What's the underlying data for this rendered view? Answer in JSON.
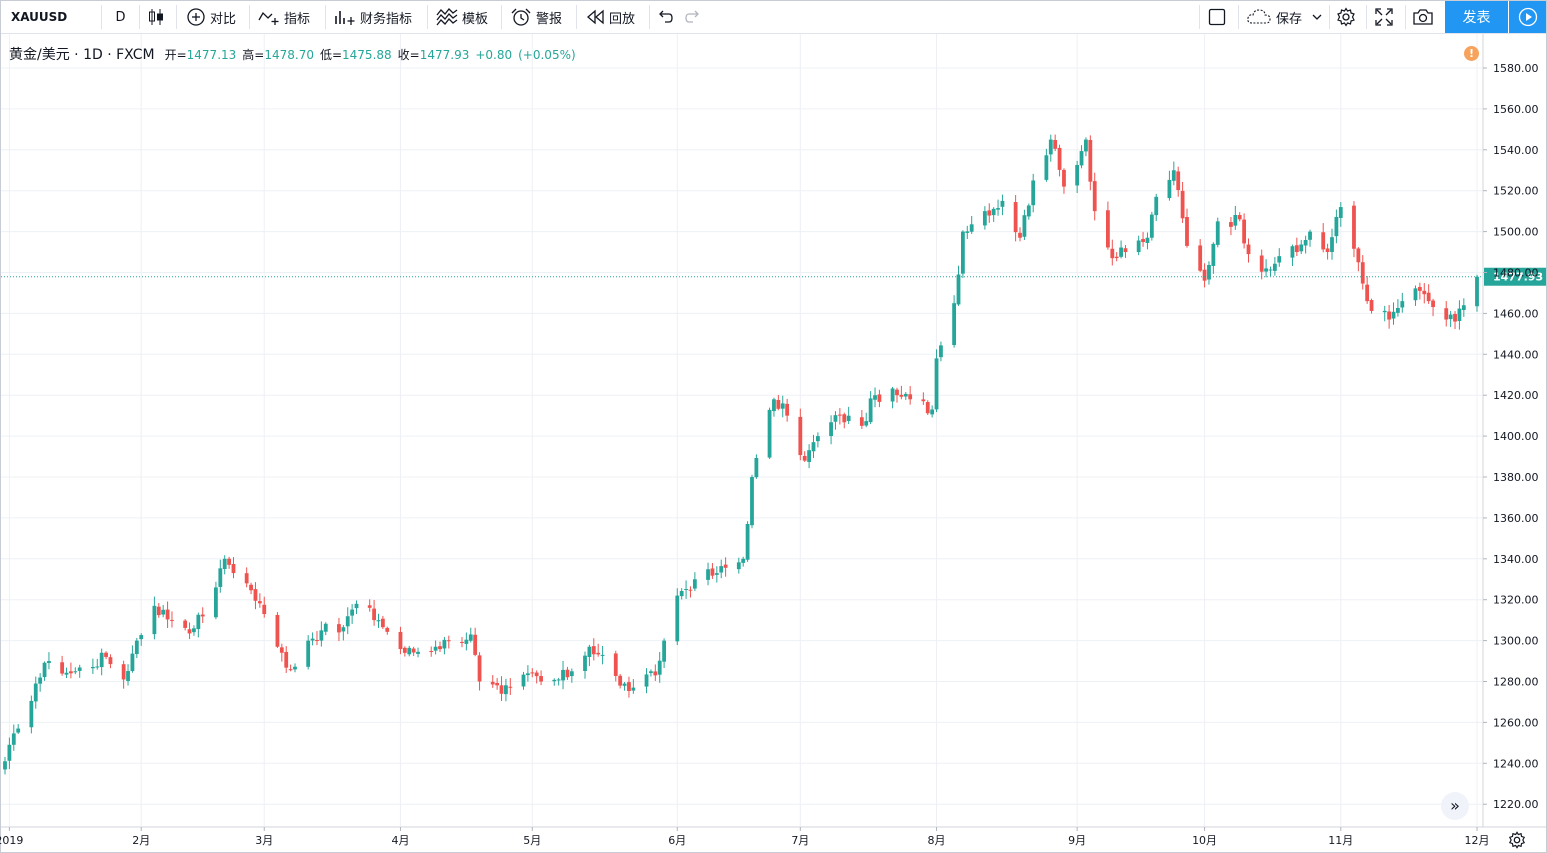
{
  "toolbar": {
    "symbol": "XAUUSD",
    "interval": "D",
    "compare_label": "对比",
    "indicators_label": "指标",
    "financials_label": "财务指标",
    "templates_label": "模板",
    "alert_label": "警报",
    "replay_label": "回放",
    "save_label": "保存",
    "publish_label": "发表"
  },
  "legend": {
    "title": "黄金/美元 · 1D · FXCM",
    "open_label": "开=",
    "open": "1477.13",
    "high_label": "高=",
    "high": "1478.70",
    "low_label": "低=",
    "low": "1475.88",
    "close_label": "收=",
    "close": "1477.93",
    "change": "+0.80",
    "change_pct": "(+0.05%)",
    "alert_mark": "!"
  },
  "colors": {
    "up": "#26a69a",
    "down": "#ef5350",
    "accent": "#2196f3",
    "grid": "#edf0f5",
    "price_line": "#26a69a"
  },
  "icons": {
    "scroll_right": "»"
  },
  "chart_data": {
    "type": "candlestick",
    "title": "黄金/美元 · 1D · FXCM",
    "x_tick_labels": [
      "2019",
      "2月",
      "3月",
      "4月",
      "5月",
      "6月",
      "7月",
      "8月",
      "9月",
      "10月",
      "11月",
      "12月"
    ],
    "y_ticks": [
      1220,
      1240,
      1260,
      1280,
      1300,
      1320,
      1340,
      1360,
      1380,
      1400,
      1420,
      1440,
      1460,
      1480,
      1500,
      1520,
      1540,
      1560,
      1580
    ],
    "y_tick_labels": [
      "1220.00",
      "1240.00",
      "1260.00",
      "1280.00",
      "1300.00",
      "1320.00",
      "1340.00",
      "1360.00",
      "1380.00",
      "1400.00",
      "1420.00",
      "1440.00",
      "1460.00",
      "1480.00",
      "1500.00",
      "1520.00",
      "1540.00",
      "1560.00",
      "1580.00"
    ],
    "ylim": [
      1212.9,
      1585.4
    ],
    "grid": true,
    "last_price": 1477.93,
    "last_price_label": "1477.93",
    "x_range": {
      "start": "2019-01-01",
      "end": "2019-12-02",
      "tick_dates": [
        "2019-01-02",
        "2019-02-01",
        "2019-03-01",
        "2019-04-01",
        "2019-05-01",
        "2019-06-03",
        "2019-07-01",
        "2019-08-01",
        "2019-09-02",
        "2019-10-01",
        "2019-11-01",
        "2019-12-02"
      ]
    },
    "anchor_closes": [
      [
        "2019-01-01",
        1241
      ],
      [
        "2019-01-04",
        1257
      ],
      [
        "2019-01-08",
        1279
      ],
      [
        "2019-01-11",
        1290
      ],
      [
        "2019-01-16",
        1284
      ],
      [
        "2019-01-24",
        1292
      ],
      [
        "2019-01-28",
        1281
      ],
      [
        "2019-01-31",
        1300
      ],
      [
        "2019-02-04",
        1317
      ],
      [
        "2019-02-08",
        1310
      ],
      [
        "2019-02-13",
        1306
      ],
      [
        "2019-02-18",
        1326
      ],
      [
        "2019-02-20",
        1340
      ],
      [
        "2019-02-25",
        1328
      ],
      [
        "2019-03-01",
        1313
      ],
      [
        "2019-03-04",
        1297
      ],
      [
        "2019-03-07",
        1286
      ],
      [
        "2019-03-11",
        1300
      ],
      [
        "2019-03-14",
        1305
      ],
      [
        "2019-03-18",
        1304
      ],
      [
        "2019-03-22",
        1318
      ],
      [
        "2019-03-27",
        1310
      ],
      [
        "2019-04-02",
        1294
      ],
      [
        "2019-04-09",
        1297
      ],
      [
        "2019-04-12",
        1300
      ],
      [
        "2019-04-17",
        1303
      ],
      [
        "2019-04-19",
        1280
      ],
      [
        "2019-04-24",
        1274
      ],
      [
        "2019-04-26",
        1277
      ],
      [
        "2019-05-01",
        1284
      ],
      [
        "2019-05-03",
        1280
      ],
      [
        "2019-05-07",
        1281
      ],
      [
        "2019-05-10",
        1285
      ],
      [
        "2019-05-14",
        1297
      ],
      [
        "2019-05-17",
        1293
      ],
      [
        "2019-05-21",
        1278
      ],
      [
        "2019-05-24",
        1277
      ],
      [
        "2019-05-29",
        1283
      ],
      [
        "2019-05-31",
        1300
      ],
      [
        "2019-06-03",
        1322
      ],
      [
        "2019-06-07",
        1330
      ],
      [
        "2019-06-12",
        1333
      ],
      [
        "2019-06-18",
        1340
      ],
      [
        "2019-06-20",
        1380
      ],
      [
        "2019-06-25",
        1418
      ],
      [
        "2019-06-28",
        1410
      ],
      [
        "2019-07-02",
        1388
      ],
      [
        "2019-07-05",
        1400
      ],
      [
        "2019-07-10",
        1410
      ],
      [
        "2019-07-15",
        1405
      ],
      [
        "2019-07-18",
        1420
      ],
      [
        "2019-07-23",
        1420
      ],
      [
        "2019-07-26",
        1418
      ],
      [
        "2019-07-31",
        1413
      ],
      [
        "2019-08-01",
        1438
      ],
      [
        "2019-08-05",
        1465
      ],
      [
        "2019-08-07",
        1500
      ],
      [
        "2019-08-12",
        1510
      ],
      [
        "2019-08-16",
        1515
      ],
      [
        "2019-08-20",
        1497
      ],
      [
        "2019-08-23",
        1525
      ],
      [
        "2019-08-27",
        1545
      ],
      [
        "2019-08-30",
        1522
      ],
      [
        "2019-09-04",
        1545
      ],
      [
        "2019-09-06",
        1510
      ],
      [
        "2019-09-10",
        1487
      ],
      [
        "2019-09-13",
        1490
      ],
      [
        "2019-09-18",
        1497
      ],
      [
        "2019-09-20",
        1517
      ],
      [
        "2019-09-24",
        1530
      ],
      [
        "2019-09-27",
        1493
      ],
      [
        "2019-10-01",
        1476
      ],
      [
        "2019-10-04",
        1505
      ],
      [
        "2019-10-09",
        1506
      ],
      [
        "2019-10-11",
        1489
      ],
      [
        "2019-10-15",
        1482
      ],
      [
        "2019-10-18",
        1488
      ],
      [
        "2019-10-22",
        1490
      ],
      [
        "2019-10-25",
        1500
      ],
      [
        "2019-10-29",
        1490
      ],
      [
        "2019-11-01",
        1512
      ],
      [
        "2019-11-05",
        1485
      ],
      [
        "2019-11-07",
        1466
      ],
      [
        "2019-11-12",
        1457
      ],
      [
        "2019-11-15",
        1466
      ],
      [
        "2019-11-19",
        1471
      ],
      [
        "2019-11-21",
        1466
      ],
      [
        "2019-11-25",
        1457
      ],
      [
        "2019-11-27",
        1456
      ],
      [
        "2019-11-29",
        1464
      ],
      [
        "2019-12-02",
        1477.93
      ]
    ]
  }
}
